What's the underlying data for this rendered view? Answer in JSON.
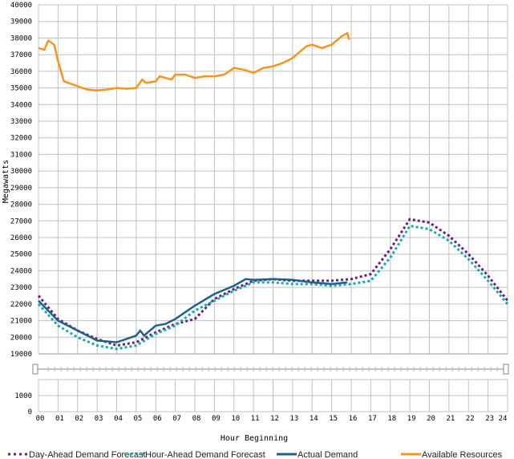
{
  "chart_data": {
    "type": "line",
    "title": "",
    "xlabel": "Hour Beginning",
    "ylabel": "Megawatts",
    "xlim": [
      0,
      24
    ],
    "ylim": [
      19000,
      40000
    ],
    "grid": true,
    "legend_position": "bottom",
    "x_ticks": [
      "00",
      "01",
      "02",
      "03",
      "04",
      "05",
      "06",
      "07",
      "08",
      "09",
      "10",
      "11",
      "12",
      "13",
      "14",
      "15",
      "16",
      "17",
      "18",
      "19",
      "20",
      "21",
      "22",
      "23",
      "24"
    ],
    "y_ticks": [
      19000,
      20000,
      21000,
      22000,
      23000,
      24000,
      25000,
      26000,
      27000,
      28000,
      29000,
      30000,
      31000,
      32000,
      33000,
      34000,
      35000,
      36000,
      37000,
      38000,
      39000,
      40000
    ],
    "lower_panel": {
      "ylim": [
        0,
        2000
      ],
      "y_ticks": [
        0,
        1000
      ]
    },
    "series": [
      {
        "name": "Day-Ahead Demand Forecast",
        "color": "#6b1f7c",
        "style": "dotted",
        "x": [
          0,
          1,
          2,
          3,
          3.5,
          4,
          5,
          6,
          7,
          8,
          9,
          10,
          11,
          12,
          13,
          14,
          15,
          16,
          17,
          18,
          19,
          20,
          21,
          22,
          23,
          24
        ],
        "y": [
          22500,
          21100,
          20400,
          19900,
          19700,
          19500,
          19700,
          20300,
          20800,
          21100,
          22300,
          22900,
          23400,
          23500,
          23400,
          23400,
          23400,
          23500,
          23800,
          25300,
          27100,
          26900,
          26100,
          25000,
          23700,
          22200
        ]
      },
      {
        "name": "Hour-Ahead Demand Forecast",
        "color": "#17a9b1",
        "style": "dotted",
        "x": [
          0,
          1,
          2,
          3,
          4,
          5,
          6,
          7,
          8,
          9,
          10,
          11,
          12,
          13,
          14,
          15,
          16,
          17,
          18,
          19,
          20,
          21,
          22,
          23,
          24
        ],
        "y": [
          22000,
          20700,
          20000,
          19500,
          19300,
          19500,
          20200,
          20700,
          21600,
          22200,
          22800,
          23300,
          23300,
          23200,
          23200,
          23100,
          23200,
          23400,
          24800,
          26700,
          26500,
          25800,
          24700,
          23400,
          22000
        ]
      },
      {
        "name": "Actual Demand",
        "color": "#1f5f8b",
        "style": "solid",
        "x": [
          0,
          1,
          2,
          3,
          4,
          4.5,
          5,
          5.2,
          5.4,
          6,
          6.5,
          7,
          8,
          9,
          10,
          10.6,
          11,
          12,
          13,
          14,
          15,
          15.8
        ],
        "y": [
          22200,
          21000,
          20400,
          19800,
          19700,
          19900,
          20100,
          20400,
          20100,
          20700,
          20800,
          21100,
          21900,
          22600,
          23100,
          23500,
          23450,
          23500,
          23450,
          23300,
          23200,
          23300
        ]
      },
      {
        "name": "Available Resources",
        "color": "#f7941d",
        "style": "solid",
        "x": [
          0,
          0.3,
          0.5,
          0.8,
          1,
          1.3,
          2,
          2.5,
          3,
          3.5,
          4,
          4.5,
          5,
          5.3,
          5.5,
          6,
          6.2,
          6.8,
          7,
          7.5,
          8,
          8.5,
          9,
          9.5,
          10,
          10.5,
          11,
          11.5,
          12,
          12.5,
          13,
          13.3,
          13.7,
          14,
          14.5,
          15,
          15.5,
          15.8,
          15.9
        ],
        "y": [
          37400,
          37300,
          37850,
          37600,
          36600,
          35400,
          35100,
          34900,
          34850,
          34900,
          35000,
          34950,
          35000,
          35500,
          35300,
          35400,
          35700,
          35500,
          35800,
          35800,
          35600,
          35700,
          35700,
          35800,
          36200,
          36100,
          35900,
          36200,
          36300,
          36500,
          36800,
          37100,
          37500,
          37600,
          37400,
          37600,
          38100,
          38300,
          37900
        ]
      }
    ]
  }
}
